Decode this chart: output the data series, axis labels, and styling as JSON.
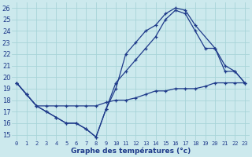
{
  "title": "Graphe des températures (°c)",
  "background_color": "#cce9ed",
  "line_color": "#1e3a8a",
  "grid_color": "#a8d4d8",
  "xlim": [
    -0.5,
    23.5
  ],
  "ylim": [
    14.5,
    26.5
  ],
  "xticks": [
    0,
    1,
    2,
    3,
    4,
    5,
    6,
    7,
    8,
    9,
    10,
    11,
    12,
    13,
    14,
    15,
    16,
    17,
    18,
    19,
    20,
    21,
    22,
    23
  ],
  "yticks": [
    15,
    16,
    17,
    18,
    19,
    20,
    21,
    22,
    23,
    24,
    25,
    26
  ],
  "line1_x": [
    0,
    1,
    2,
    3,
    4,
    5,
    6,
    7,
    8,
    9,
    10,
    11,
    12,
    13,
    14,
    15,
    16,
    17,
    18,
    20,
    21,
    22,
    23
  ],
  "line1_y": [
    19.5,
    18.5,
    17.5,
    17.0,
    16.5,
    16.0,
    16.0,
    15.5,
    14.8,
    17.2,
    19.0,
    22.0,
    23.0,
    24.0,
    24.5,
    25.5,
    26.0,
    25.8,
    24.5,
    22.5,
    21.0,
    20.5,
    19.5
  ],
  "line2_x": [
    0,
    1,
    2,
    3,
    4,
    5,
    6,
    7,
    8,
    9,
    10,
    11,
    12,
    13,
    14,
    15,
    16,
    17,
    18,
    19,
    20,
    21,
    22,
    23
  ],
  "line2_y": [
    19.5,
    18.5,
    17.5,
    17.0,
    16.5,
    16.0,
    16.0,
    15.5,
    14.8,
    17.2,
    19.5,
    20.5,
    21.5,
    22.5,
    23.5,
    25.0,
    25.8,
    25.5,
    24.0,
    22.5,
    22.5,
    20.5,
    20.5,
    19.5
  ],
  "line3_x": [
    0,
    1,
    2,
    3,
    4,
    5,
    6,
    7,
    8,
    9,
    10,
    11,
    12,
    13,
    14,
    15,
    16,
    17,
    18,
    19,
    20,
    21,
    22,
    23
  ],
  "line3_y": [
    19.5,
    18.5,
    17.5,
    17.5,
    17.5,
    17.5,
    17.5,
    17.5,
    17.5,
    17.8,
    18.0,
    18.0,
    18.2,
    18.5,
    18.8,
    18.8,
    19.0,
    19.0,
    19.0,
    19.2,
    19.5,
    19.5,
    19.5,
    19.5
  ]
}
